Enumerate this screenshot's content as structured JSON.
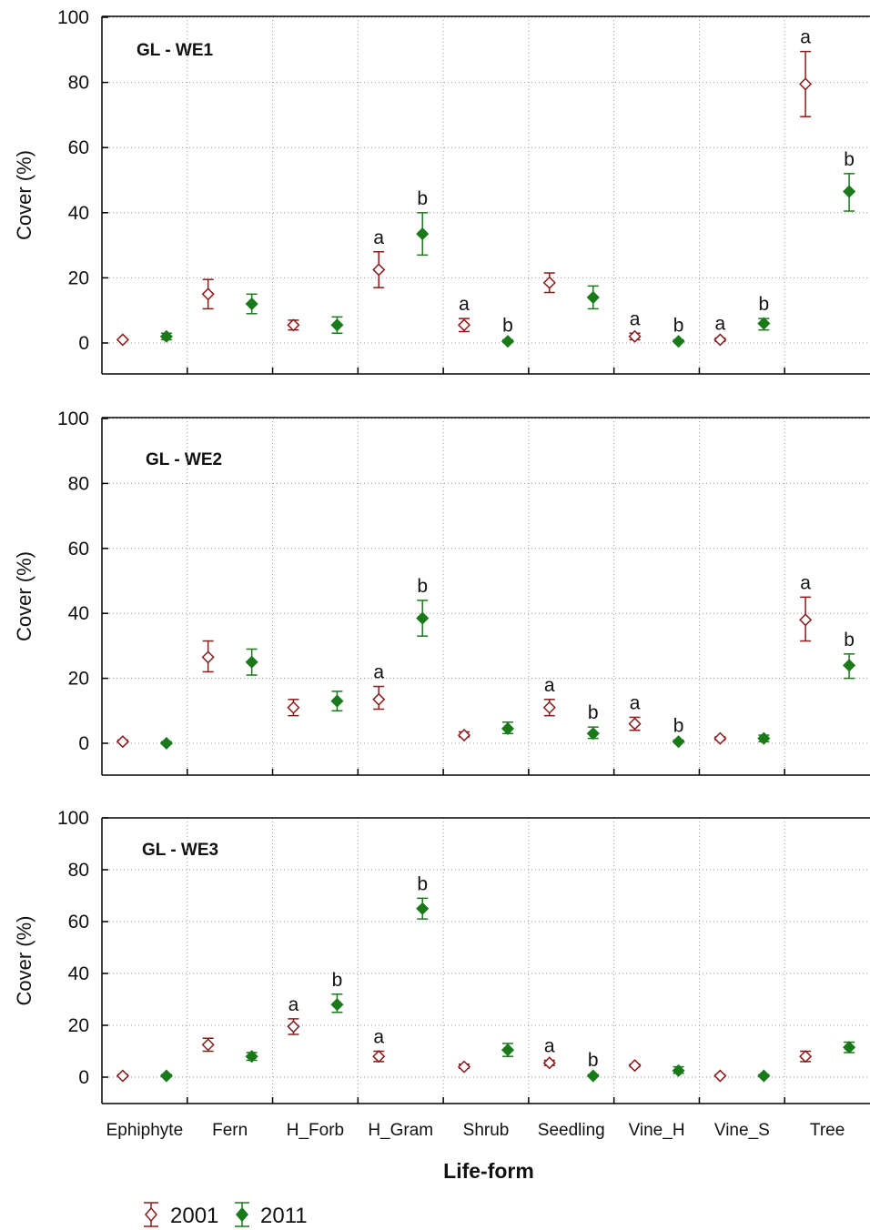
{
  "xlabel": "Life-form",
  "ylabel": "Cover (%)",
  "legend": [
    {
      "label": "2001",
      "color": "#8b1a1a",
      "marker": "diamond-open"
    },
    {
      "label": "2011",
      "color": "#1a7a1a",
      "marker": "diamond-filled"
    }
  ],
  "chart_data": [
    {
      "type": "scatter",
      "title": "GL - WE1",
      "xlabel": "Life-form",
      "ylabel": "Cover (%)",
      "ylim": [
        -10,
        100
      ],
      "yticks": [
        0,
        20,
        40,
        60,
        80,
        100
      ],
      "grid": true,
      "categories": [
        "Ephiphyte",
        "Fern",
        "H_Forb",
        "H_Gram",
        "Shrub",
        "Seedling",
        "Vine_H",
        "Vine_S",
        "Tree"
      ],
      "series": [
        {
          "name": "2001",
          "color": "#8b1a1a",
          "values": [
            1,
            15,
            5.5,
            22.5,
            5.5,
            18.5,
            2,
            1,
            79.5
          ],
          "err": [
            [
              1,
              1
            ],
            [
              10.5,
              19.5
            ],
            [
              4,
              7
            ],
            [
              17,
              28
            ],
            [
              3.5,
              7.5
            ],
            [
              15.5,
              21.5
            ],
            [
              1,
              3
            ],
            [
              0.5,
              1.5
            ],
            [
              69.5,
              89.5
            ]
          ],
          "letters": [
            "",
            "",
            "",
            "a",
            "a",
            "",
            "a",
            "a",
            "a"
          ]
        },
        {
          "name": "2011",
          "color": "#1a7a1a",
          "values": [
            2,
            12,
            5.5,
            33.5,
            0.5,
            14,
            0.5,
            6,
            46.5
          ],
          "err": [
            [
              1,
              3
            ],
            [
              9,
              15
            ],
            [
              3,
              8
            ],
            [
              27,
              40
            ],
            [
              0.5,
              1
            ],
            [
              10.5,
              17.5
            ],
            [
              0.5,
              1
            ],
            [
              4,
              7.5
            ],
            [
              40.5,
              52
            ]
          ],
          "letters": [
            "",
            "",
            "",
            "b",
            "b",
            "",
            "b",
            "b",
            "b"
          ]
        }
      ]
    },
    {
      "type": "scatter",
      "title": "GL - WE2",
      "xlabel": "Life-form",
      "ylabel": "Cover (%)",
      "ylim": [
        -10,
        100
      ],
      "yticks": [
        0,
        20,
        40,
        60,
        80,
        100
      ],
      "grid": true,
      "categories": [
        "Ephiphyte",
        "Fern",
        "H_Forb",
        "H_Gram",
        "Shrub",
        "Seedling",
        "Vine_H",
        "Vine_S",
        "Tree"
      ],
      "series": [
        {
          "name": "2001",
          "color": "#8b1a1a",
          "values": [
            0.5,
            26.5,
            11,
            13.5,
            2.5,
            11,
            6,
            1.5,
            38
          ],
          "err": [
            [
              0.5,
              1
            ],
            [
              22,
              31.5
            ],
            [
              8.5,
              13.5
            ],
            [
              10.5,
              17.5
            ],
            [
              2,
              3.5
            ],
            [
              8.5,
              13.5
            ],
            [
              4,
              8
            ],
            [
              1,
              2
            ],
            [
              31.5,
              45
            ]
          ],
          "letters": [
            "",
            "",
            "",
            "a",
            "",
            "a",
            "a",
            "",
            "a"
          ]
        },
        {
          "name": "2011",
          "color": "#1a7a1a",
          "values": [
            0,
            25,
            13,
            38.5,
            4.5,
            3,
            0.5,
            1.5,
            24
          ],
          "err": [
            [
              0,
              0.5
            ],
            [
              21,
              29
            ],
            [
              10,
              16
            ],
            [
              33,
              44
            ],
            [
              3,
              6.5
            ],
            [
              1.5,
              5
            ],
            [
              0.5,
              1
            ],
            [
              0.5,
              2.5
            ],
            [
              20,
              27.5
            ]
          ],
          "letters": [
            "",
            "",
            "",
            "b",
            "",
            "b",
            "b",
            "",
            "b"
          ]
        }
      ]
    },
    {
      "type": "scatter",
      "title": "GL - WE3",
      "xlabel": "Life-form",
      "ylabel": "Cover (%)",
      "ylim": [
        -10,
        100
      ],
      "yticks": [
        0,
        20,
        40,
        60,
        80,
        100
      ],
      "grid": true,
      "categories": [
        "Ephiphyte",
        "Fern",
        "H_Forb",
        "H_Gram",
        "Shrub",
        "Seedling",
        "Vine_H",
        "Vine_S",
        "Tree"
      ],
      "series": [
        {
          "name": "2001",
          "color": "#8b1a1a",
          "values": [
            0.5,
            12.5,
            19.5,
            8,
            4,
            5.5,
            4.5,
            0.5,
            8
          ],
          "err": [
            [
              0.5,
              1
            ],
            [
              10,
              15
            ],
            [
              16.5,
              22.5
            ],
            [
              6,
              10
            ],
            [
              3.5,
              5
            ],
            [
              4.5,
              6.5
            ],
            [
              4,
              5
            ],
            [
              0.5,
              1
            ],
            [
              6,
              10
            ]
          ],
          "letters": [
            "",
            "",
            "a",
            "a",
            "",
            "a",
            "",
            "",
            ""
          ]
        },
        {
          "name": "2011",
          "color": "#1a7a1a",
          "values": [
            0.5,
            8,
            28,
            65,
            10.5,
            0.5,
            2.5,
            0.5,
            11.5
          ],
          "err": [
            [
              0.5,
              1
            ],
            [
              6.5,
              9.5
            ],
            [
              25,
              32
            ],
            [
              61,
              69
            ],
            [
              8,
              13
            ],
            [
              0.5,
              1
            ],
            [
              1.5,
              4
            ],
            [
              0.5,
              1
            ],
            [
              9.5,
              13.5
            ]
          ],
          "letters": [
            "",
            "",
            "b",
            "b",
            "",
            "b",
            "",
            "",
            ""
          ]
        }
      ]
    }
  ]
}
